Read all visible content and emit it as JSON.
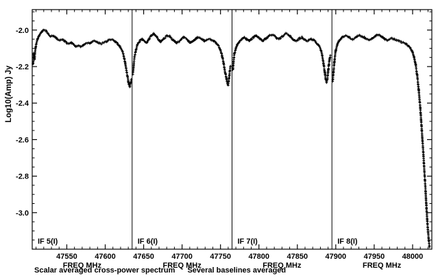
{
  "chart_data": {
    "type": "line",
    "marker": "+",
    "color": "#000000",
    "background": "#ffffff",
    "title": "",
    "xlabel": "FREQ MHz",
    "ylabel": "Log10(Amp) Jy",
    "grid": false,
    "ylim": [
      -3.2,
      -1.888
    ],
    "yticks": [
      -2.0,
      -2.2,
      -2.4,
      -2.6,
      -2.8,
      -3.0
    ],
    "y_minor_step": 0.05,
    "x_minor_step": 10,
    "footer": {
      "left": "Scalar averaged cross-power spectrum",
      "right": "Several baselines averaged"
    },
    "panels": [
      {
        "label": "IF 5(I)",
        "xlim": [
          47505,
          47635
        ],
        "xticks": [
          47550,
          47600
        ],
        "points": [
          [
            47506,
            -2.19
          ],
          [
            47507,
            -2.13
          ],
          [
            47508,
            -2.16
          ],
          [
            47509,
            -2.11
          ],
          [
            47510,
            -2.08
          ],
          [
            47512,
            -2.05
          ],
          [
            47514,
            -2.03
          ],
          [
            47517,
            -2.01
          ],
          [
            47520,
            -2.0
          ],
          [
            47523,
            -2.005
          ],
          [
            47526,
            -2.02
          ],
          [
            47529,
            -2.035
          ],
          [
            47532,
            -2.03
          ],
          [
            47535,
            -2.04
          ],
          [
            47538,
            -2.05
          ],
          [
            47541,
            -2.055
          ],
          [
            47544,
            -2.05
          ],
          [
            47547,
            -2.06
          ],
          [
            47550,
            -2.07
          ],
          [
            47553,
            -2.075
          ],
          [
            47556,
            -2.07
          ],
          [
            47559,
            -2.08
          ],
          [
            47562,
            -2.09
          ],
          [
            47565,
            -2.085
          ],
          [
            47568,
            -2.09
          ],
          [
            47571,
            -2.085
          ],
          [
            47574,
            -2.075
          ],
          [
            47577,
            -2.07
          ],
          [
            47580,
            -2.075
          ],
          [
            47583,
            -2.065
          ],
          [
            47586,
            -2.06
          ],
          [
            47589,
            -2.065
          ],
          [
            47592,
            -2.07
          ],
          [
            47595,
            -2.075
          ],
          [
            47598,
            -2.07
          ],
          [
            47601,
            -2.065
          ],
          [
            47604,
            -2.055
          ],
          [
            47607,
            -2.05
          ],
          [
            47610,
            -2.055
          ],
          [
            47613,
            -2.065
          ],
          [
            47616,
            -2.075
          ],
          [
            47619,
            -2.09
          ],
          [
            47622,
            -2.11
          ],
          [
            47624,
            -2.14
          ],
          [
            47626,
            -2.18
          ],
          [
            47628,
            -2.23
          ],
          [
            47630,
            -2.28
          ],
          [
            47631,
            -2.3
          ],
          [
            47632,
            -2.31
          ],
          [
            47633,
            -2.29
          ],
          [
            47634,
            -2.27
          ]
        ]
      },
      {
        "label": "IF 6(I)",
        "xlim": [
          47635,
          47765
        ],
        "xticks": [
          47650,
          47700,
          47750
        ],
        "points": [
          [
            47636,
            -2.24
          ],
          [
            47637,
            -2.19
          ],
          [
            47638,
            -2.15
          ],
          [
            47640,
            -2.11
          ],
          [
            47642,
            -2.08
          ],
          [
            47645,
            -2.06
          ],
          [
            47648,
            -2.05
          ],
          [
            47651,
            -2.06
          ],
          [
            47654,
            -2.07
          ],
          [
            47657,
            -2.05
          ],
          [
            47660,
            -2.03
          ],
          [
            47663,
            -2.02
          ],
          [
            47666,
            -2.03
          ],
          [
            47669,
            -2.05
          ],
          [
            47672,
            -2.065
          ],
          [
            47675,
            -2.05
          ],
          [
            47678,
            -2.04
          ],
          [
            47681,
            -2.03
          ],
          [
            47684,
            -2.035
          ],
          [
            47687,
            -2.05
          ],
          [
            47690,
            -2.06
          ],
          [
            47693,
            -2.07
          ],
          [
            47696,
            -2.065
          ],
          [
            47699,
            -2.05
          ],
          [
            47702,
            -2.04
          ],
          [
            47705,
            -2.045
          ],
          [
            47708,
            -2.06
          ],
          [
            47711,
            -2.07
          ],
          [
            47714,
            -2.06
          ],
          [
            47717,
            -2.05
          ],
          [
            47720,
            -2.04
          ],
          [
            47723,
            -2.045
          ],
          [
            47726,
            -2.05
          ],
          [
            47729,
            -2.06
          ],
          [
            47732,
            -2.055
          ],
          [
            47735,
            -2.05
          ],
          [
            47738,
            -2.055
          ],
          [
            47741,
            -2.06
          ],
          [
            47744,
            -2.07
          ],
          [
            47747,
            -2.085
          ],
          [
            47750,
            -2.11
          ],
          [
            47752,
            -2.14
          ],
          [
            47754,
            -2.18
          ],
          [
            47756,
            -2.23
          ],
          [
            47758,
            -2.27
          ],
          [
            47759,
            -2.29
          ],
          [
            47760,
            -2.3
          ],
          [
            47761,
            -2.27
          ],
          [
            47762,
            -2.23
          ],
          [
            47763,
            -2.2
          ]
        ]
      },
      {
        "label": "IF 7(I)",
        "xlim": [
          47765,
          47895
        ],
        "xticks": [
          47800,
          47850
        ],
        "points": [
          [
            47766,
            -2.22
          ],
          [
            47767,
            -2.17
          ],
          [
            47768,
            -2.13
          ],
          [
            47770,
            -2.1
          ],
          [
            47772,
            -2.08
          ],
          [
            47775,
            -2.06
          ],
          [
            47778,
            -2.05
          ],
          [
            47781,
            -2.04
          ],
          [
            47784,
            -2.05
          ],
          [
            47787,
            -2.06
          ],
          [
            47790,
            -2.05
          ],
          [
            47793,
            -2.04
          ],
          [
            47796,
            -2.03
          ],
          [
            47799,
            -2.04
          ],
          [
            47802,
            -2.05
          ],
          [
            47805,
            -2.06
          ],
          [
            47808,
            -2.05
          ],
          [
            47811,
            -2.04
          ],
          [
            47814,
            -2.03
          ],
          [
            47817,
            -2.025
          ],
          [
            47820,
            -2.03
          ],
          [
            47823,
            -2.045
          ],
          [
            47826,
            -2.05
          ],
          [
            47829,
            -2.04
          ],
          [
            47832,
            -2.03
          ],
          [
            47835,
            -2.02
          ],
          [
            47838,
            -2.025
          ],
          [
            47841,
            -2.035
          ],
          [
            47844,
            -2.05
          ],
          [
            47847,
            -2.06
          ],
          [
            47850,
            -2.055
          ],
          [
            47853,
            -2.045
          ],
          [
            47856,
            -2.04
          ],
          [
            47859,
            -2.05
          ],
          [
            47862,
            -2.06
          ],
          [
            47865,
            -2.055
          ],
          [
            47868,
            -2.05
          ],
          [
            47871,
            -2.055
          ],
          [
            47874,
            -2.065
          ],
          [
            47877,
            -2.08
          ],
          [
            47880,
            -2.1
          ],
          [
            47882,
            -2.13
          ],
          [
            47884,
            -2.18
          ],
          [
            47886,
            -2.24
          ],
          [
            47887,
            -2.27
          ],
          [
            47888,
            -2.285
          ],
          [
            47889,
            -2.27
          ],
          [
            47890,
            -2.23
          ],
          [
            47891,
            -2.19
          ],
          [
            47892,
            -2.16
          ],
          [
            47893,
            -2.14
          ]
        ]
      },
      {
        "label": "IF 8(I)",
        "xlim": [
          47895,
          48025
        ],
        "xticks": [
          47900,
          47950,
          48000
        ],
        "points": [
          [
            47896,
            -2.28
          ],
          [
            47897,
            -2.23
          ],
          [
            47898,
            -2.18
          ],
          [
            47899,
            -2.14
          ],
          [
            47900,
            -2.11
          ],
          [
            47902,
            -2.08
          ],
          [
            47904,
            -2.06
          ],
          [
            47907,
            -2.045
          ],
          [
            47910,
            -2.035
          ],
          [
            47913,
            -2.03
          ],
          [
            47916,
            -2.035
          ],
          [
            47919,
            -2.045
          ],
          [
            47922,
            -2.05
          ],
          [
            47925,
            -2.045
          ],
          [
            47928,
            -2.035
          ],
          [
            47931,
            -2.03
          ],
          [
            47934,
            -2.035
          ],
          [
            47937,
            -2.04
          ],
          [
            47940,
            -2.05
          ],
          [
            47943,
            -2.055
          ],
          [
            47946,
            -2.05
          ],
          [
            47949,
            -2.04
          ],
          [
            47952,
            -2.03
          ],
          [
            47955,
            -2.025
          ],
          [
            47958,
            -2.03
          ],
          [
            47961,
            -2.04
          ],
          [
            47964,
            -2.05
          ],
          [
            47967,
            -2.055
          ],
          [
            47970,
            -2.05
          ],
          [
            47973,
            -2.045
          ],
          [
            47976,
            -2.05
          ],
          [
            47979,
            -2.055
          ],
          [
            47982,
            -2.06
          ],
          [
            47985,
            -2.065
          ],
          [
            47988,
            -2.07
          ],
          [
            47991,
            -2.075
          ],
          [
            47994,
            -2.085
          ],
          [
            47997,
            -2.1
          ],
          [
            48000,
            -2.12
          ],
          [
            48002,
            -2.15
          ],
          [
            48004,
            -2.19
          ],
          [
            48006,
            -2.25
          ],
          [
            48008,
            -2.33
          ],
          [
            48010,
            -2.43
          ],
          [
            48012,
            -2.55
          ],
          [
            48014,
            -2.68
          ],
          [
            48016,
            -2.82
          ],
          [
            48017,
            -2.89
          ],
          [
            48018,
            -2.97
          ],
          [
            48019,
            -3.04
          ],
          [
            48020,
            -3.1
          ],
          [
            48021,
            -3.15
          ],
          [
            48022,
            -3.19
          ]
        ]
      }
    ]
  }
}
